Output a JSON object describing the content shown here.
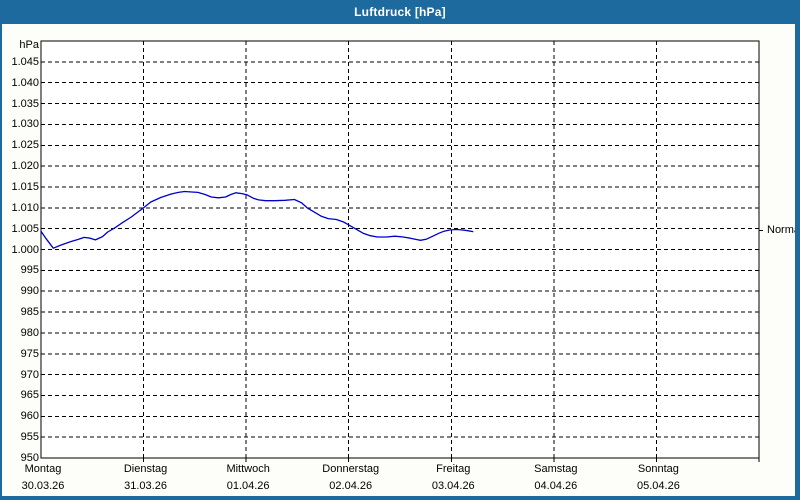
{
  "window": {
    "title": "Luftdruck [hPa]"
  },
  "colors": {
    "titlebar": "#1d6a9e",
    "window_border": "#1d6a9e",
    "curve": "#0000cc",
    "grid": "#000000",
    "plot_background": "#ffffff",
    "label_text": "#000000",
    "title_text": "#ffffff"
  },
  "chart_data": {
    "type": "line",
    "title": "Luftdruck [hPa]",
    "ylabel_unit": "hPa",
    "grid": "dashed",
    "legend_position": "none",
    "y_axis": {
      "min": 950,
      "max": 1050,
      "tick_step": 5,
      "tick_labels": [
        "1.045",
        "1.040",
        "1.035",
        "1.030",
        "1.025",
        "1.020",
        "1.015",
        "1.010",
        "1.005",
        "1.000",
        "995",
        "990",
        "985",
        "980",
        "975",
        "970",
        "965",
        "960",
        "955",
        "950"
      ]
    },
    "x_axis": {
      "days": [
        {
          "name": "Montag",
          "date": "30.03.26"
        },
        {
          "name": "Dienstag",
          "date": "31.03.26"
        },
        {
          "name": "Mittwoch",
          "date": "01.04.26"
        },
        {
          "name": "Donnerstag",
          "date": "02.04.26"
        },
        {
          "name": "Freitag",
          "date": "03.04.26"
        },
        {
          "name": "Samstag",
          "date": "04.04.26"
        },
        {
          "name": "Sonntag",
          "date": "05.04.26"
        }
      ]
    },
    "annotations": [
      {
        "label": "Normal",
        "value_hpa": 1004.6,
        "side": "right"
      }
    ],
    "series": [
      {
        "name": "Luftdruck",
        "unit": "hPa",
        "color": "#0000cc",
        "points": [
          {
            "day": 0.0,
            "hpa": 1004.4
          },
          {
            "day": 0.05,
            "hpa": 1002.6
          },
          {
            "day": 0.12,
            "hpa": 1000.3
          },
          {
            "day": 0.2,
            "hpa": 1001.1
          },
          {
            "day": 0.29,
            "hpa": 1001.9
          },
          {
            "day": 0.36,
            "hpa": 1002.4
          },
          {
            "day": 0.42,
            "hpa": 1002.9
          },
          {
            "day": 0.48,
            "hpa": 1002.7
          },
          {
            "day": 0.53,
            "hpa": 1002.3
          },
          {
            "day": 0.6,
            "hpa": 1003.1
          },
          {
            "day": 0.65,
            "hpa": 1004.2
          },
          {
            "day": 0.72,
            "hpa": 1005.2
          },
          {
            "day": 0.78,
            "hpa": 1006.2
          },
          {
            "day": 0.88,
            "hpa": 1007.8
          },
          {
            "day": 0.95,
            "hpa": 1009.1
          },
          {
            "day": 1.0,
            "hpa": 1010.0
          },
          {
            "day": 1.07,
            "hpa": 1011.4
          },
          {
            "day": 1.17,
            "hpa": 1012.5
          },
          {
            "day": 1.27,
            "hpa": 1013.3
          },
          {
            "day": 1.34,
            "hpa": 1013.7
          },
          {
            "day": 1.4,
            "hpa": 1013.9
          },
          {
            "day": 1.47,
            "hpa": 1013.8
          },
          {
            "day": 1.53,
            "hpa": 1013.7
          },
          {
            "day": 1.6,
            "hpa": 1013.2
          },
          {
            "day": 1.66,
            "hpa": 1012.6
          },
          {
            "day": 1.73,
            "hpa": 1012.4
          },
          {
            "day": 1.8,
            "hpa": 1012.6
          },
          {
            "day": 1.85,
            "hpa": 1013.2
          },
          {
            "day": 1.9,
            "hpa": 1013.6
          },
          {
            "day": 1.96,
            "hpa": 1013.4
          },
          {
            "day": 2.01,
            "hpa": 1013.1
          },
          {
            "day": 2.07,
            "hpa": 1012.3
          },
          {
            "day": 2.12,
            "hpa": 1011.9
          },
          {
            "day": 2.19,
            "hpa": 1011.7
          },
          {
            "day": 2.28,
            "hpa": 1011.7
          },
          {
            "day": 2.38,
            "hpa": 1011.8
          },
          {
            "day": 2.47,
            "hpa": 1012.0
          },
          {
            "day": 2.54,
            "hpa": 1011.2
          },
          {
            "day": 2.6,
            "hpa": 1009.9
          },
          {
            "day": 2.67,
            "hpa": 1008.9
          },
          {
            "day": 2.73,
            "hpa": 1008.0
          },
          {
            "day": 2.8,
            "hpa": 1007.4
          },
          {
            "day": 2.88,
            "hpa": 1007.2
          },
          {
            "day": 2.95,
            "hpa": 1006.6
          },
          {
            "day": 3.0,
            "hpa": 1005.9
          },
          {
            "day": 3.07,
            "hpa": 1004.9
          },
          {
            "day": 3.14,
            "hpa": 1003.9
          },
          {
            "day": 3.21,
            "hpa": 1003.3
          },
          {
            "day": 3.28,
            "hpa": 1003.0
          },
          {
            "day": 3.37,
            "hpa": 1003.0
          },
          {
            "day": 3.45,
            "hpa": 1003.2
          },
          {
            "day": 3.53,
            "hpa": 1003.0
          },
          {
            "day": 3.6,
            "hpa": 1002.7
          },
          {
            "day": 3.66,
            "hpa": 1002.4
          },
          {
            "day": 3.7,
            "hpa": 1002.2
          },
          {
            "day": 3.76,
            "hpa": 1002.5
          },
          {
            "day": 3.82,
            "hpa": 1003.2
          },
          {
            "day": 3.88,
            "hpa": 1003.9
          },
          {
            "day": 3.93,
            "hpa": 1004.4
          },
          {
            "day": 3.99,
            "hpa": 1004.7
          },
          {
            "day": 4.05,
            "hpa": 1004.8
          },
          {
            "day": 4.1,
            "hpa": 1004.7
          },
          {
            "day": 4.16,
            "hpa": 1004.5
          },
          {
            "day": 4.21,
            "hpa": 1004.3
          }
        ]
      }
    ]
  }
}
